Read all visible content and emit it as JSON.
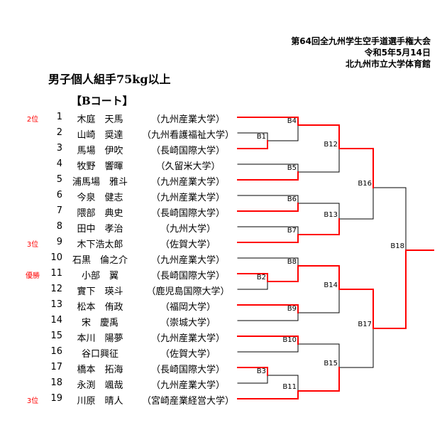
{
  "header": {
    "tournament": "第64回全九州学生空手道選手権大会",
    "date": "令和5年5月14日",
    "venue": "北九州市立大学体育館",
    "event": "男子個人組手75kg以上",
    "court": "【Bコート】"
  },
  "colors": {
    "winner_line": "#ff0000",
    "line": "#000000",
    "rank_text": "#ff0000"
  },
  "players": [
    {
      "rank": "2位",
      "num": "1",
      "name": "木庭　天馬",
      "school": "（九州産業大学）"
    },
    {
      "rank": "",
      "num": "2",
      "name": "山崎　奨達",
      "school": "（九州看護福祉大学）"
    },
    {
      "rank": "",
      "num": "3",
      "name": "馬場　伊吹",
      "school": "（長崎国際大学）"
    },
    {
      "rank": "",
      "num": "4",
      "name": "牧野　響暉",
      "school": "（久留米大学）"
    },
    {
      "rank": "",
      "num": "5",
      "name": "浦馬場　雅斗",
      "school": "（九州産業大学）"
    },
    {
      "rank": "",
      "num": "6",
      "name": "今泉　健志",
      "school": "（九州産業大学）"
    },
    {
      "rank": "",
      "num": "7",
      "name": "隈部　典史",
      "school": "（長崎国際大学）"
    },
    {
      "rank": "",
      "num": "8",
      "name": "田中　孝治",
      "school": "（九州大学）"
    },
    {
      "rank": "3位",
      "num": "9",
      "name": "木下浩太郎",
      "school": "（佐賀大学）"
    },
    {
      "rank": "",
      "num": "10",
      "name": "石黒　倫之介",
      "school": "（九州産業大学）"
    },
    {
      "rank": "優勝",
      "num": "11",
      "name": "小部　翼",
      "school": "（長崎国際大学）"
    },
    {
      "rank": "",
      "num": "12",
      "name": "實下　瑛斗",
      "school": "（鹿児島国際大学）"
    },
    {
      "rank": "",
      "num": "13",
      "name": "松本　侑政",
      "school": "（福岡大学）"
    },
    {
      "rank": "",
      "num": "14",
      "name": "宋　慶禹",
      "school": "（崇城大学）"
    },
    {
      "rank": "",
      "num": "15",
      "name": "本川　陽夢",
      "school": "（九州産業大学）"
    },
    {
      "rank": "",
      "num": "16",
      "name": "谷口興征",
      "school": "（佐賀大学）"
    },
    {
      "rank": "",
      "num": "17",
      "name": "橋本　拓海",
      "school": "（長崎国際大学）"
    },
    {
      "rank": "",
      "num": "18",
      "name": "永渕　颯哉",
      "school": "（九州産業大学）"
    },
    {
      "rank": "3位",
      "num": "19",
      "name": "川原　晴人",
      "school": "（宮崎産業経営大学）"
    }
  ],
  "bouts": [
    "B1",
    "B2",
    "B3",
    "B4",
    "B5",
    "B6",
    "B7",
    "B8",
    "B9",
    "B10",
    "B11",
    "B12",
    "B13",
    "B14",
    "B15",
    "B16",
    "B17",
    "B18"
  ]
}
